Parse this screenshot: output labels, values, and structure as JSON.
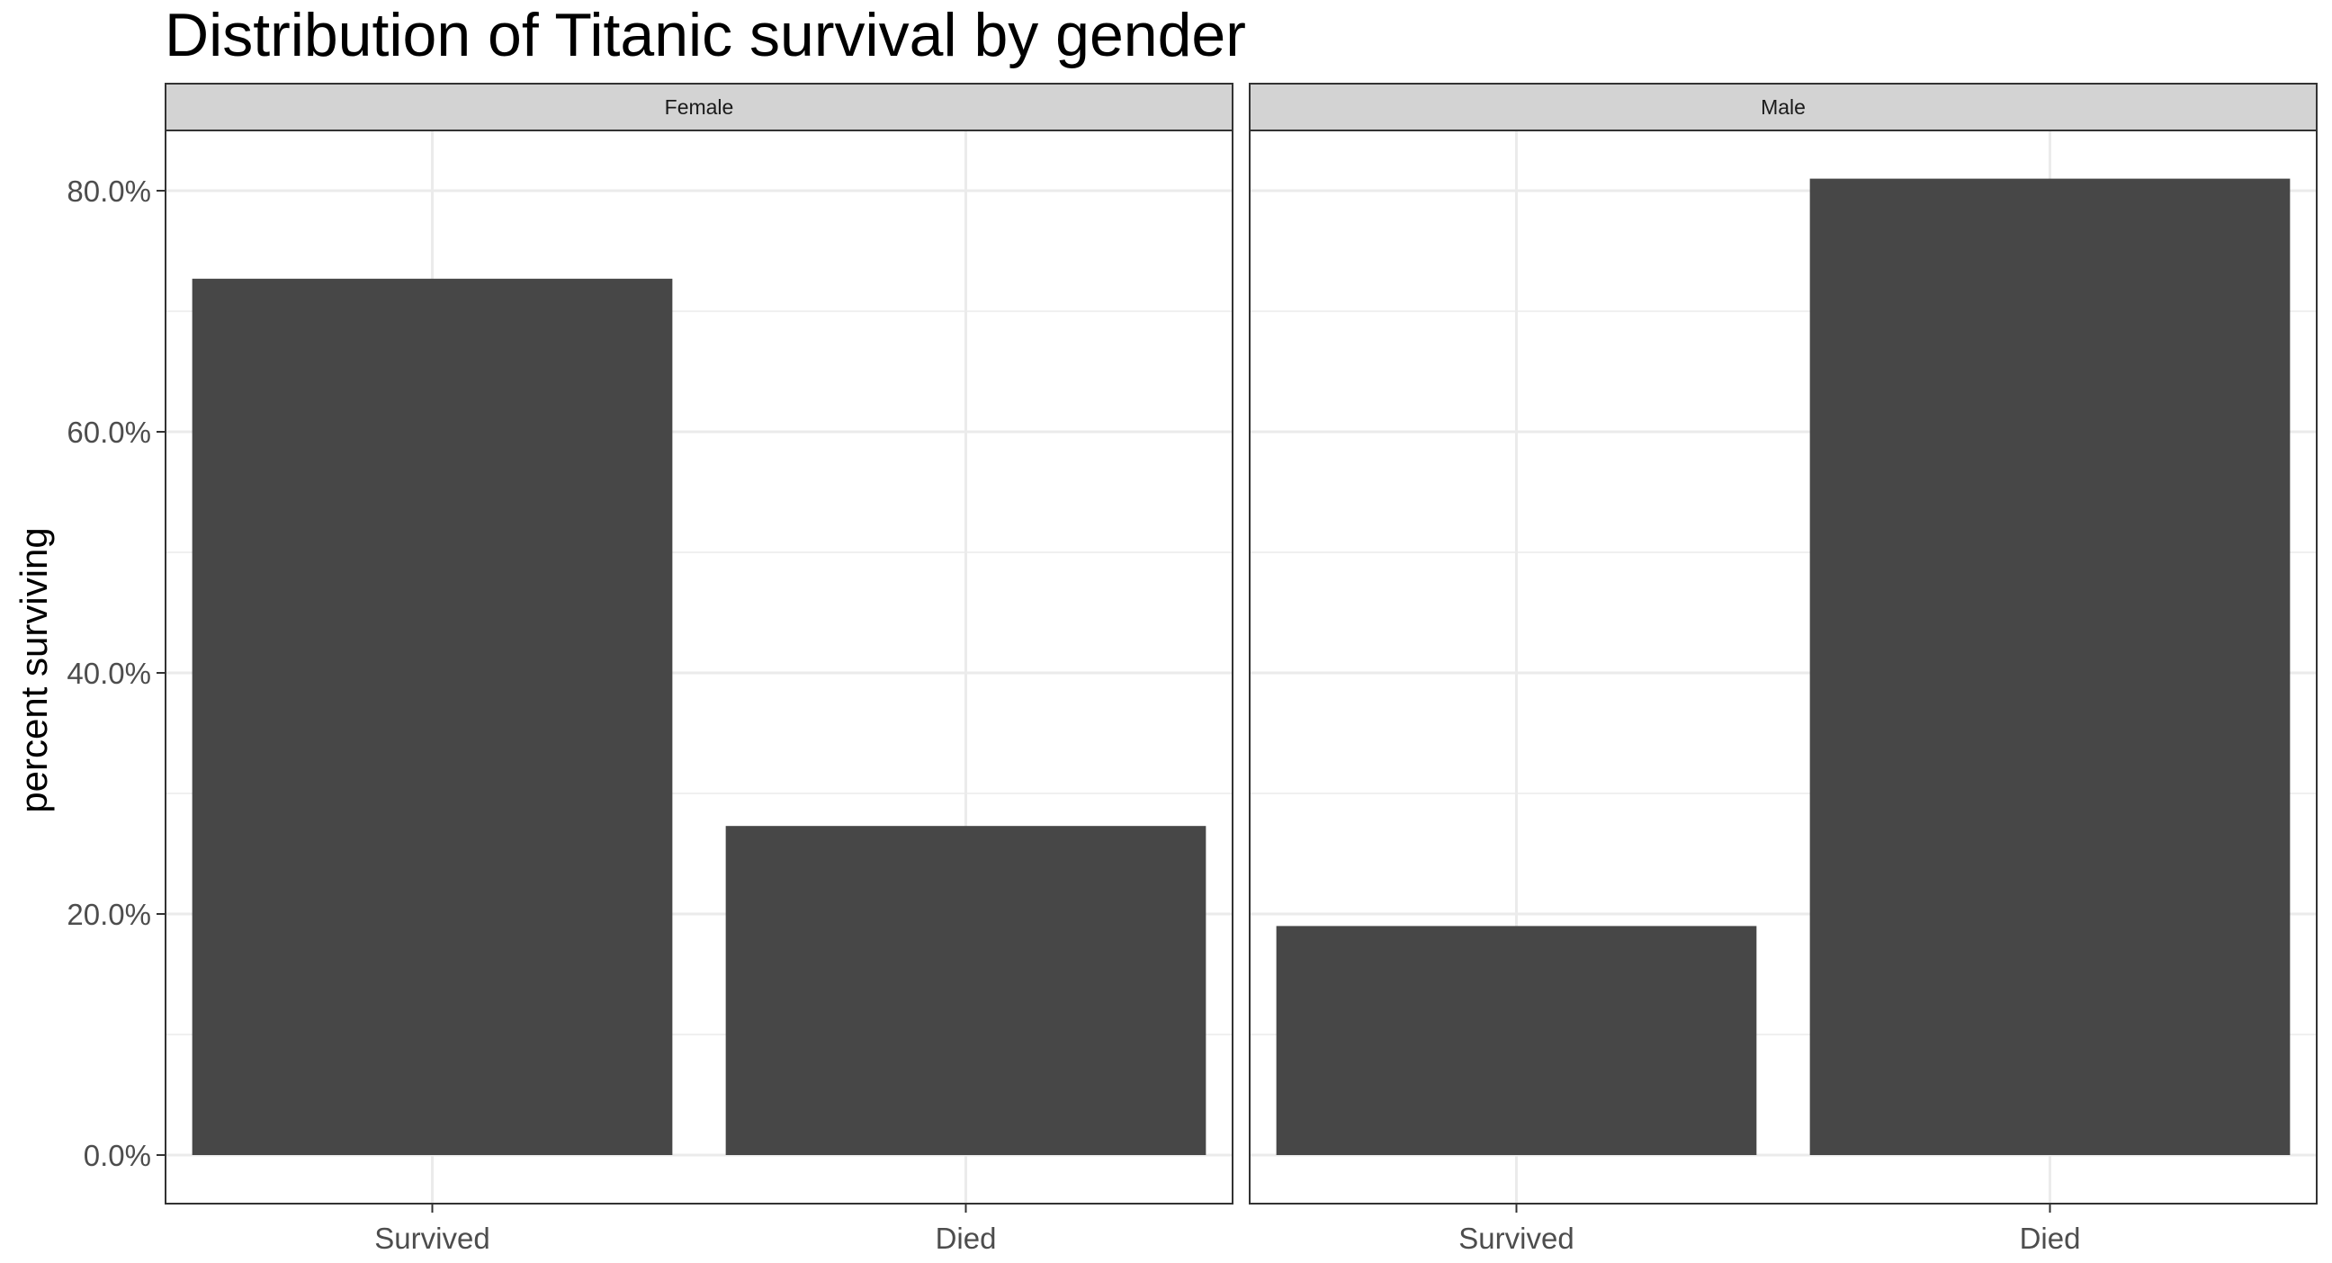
{
  "chart_data": {
    "type": "bar",
    "title": "Distribution of Titanic survival by gender",
    "ylabel": "percent surviving",
    "xlabel": "",
    "ylim": [
      0,
      0.85
    ],
    "y_ticks": [
      {
        "value": 0.0,
        "label": "0.0%"
      },
      {
        "value": 0.2,
        "label": "20.0%"
      },
      {
        "value": 0.4,
        "label": "40.0%"
      },
      {
        "value": 0.6,
        "label": "60.0%"
      },
      {
        "value": 0.8,
        "label": "80.0%"
      }
    ],
    "categories": [
      "Survived",
      "Died"
    ],
    "grid": true,
    "bar_color": "#474747",
    "strip_color": "#d3d3d3",
    "grid_color": "#ebebeb",
    "panels": [
      {
        "name": "Female",
        "values": [
          0.727,
          0.273
        ]
      },
      {
        "name": "Male",
        "values": [
          0.19,
          0.81
        ]
      }
    ]
  }
}
